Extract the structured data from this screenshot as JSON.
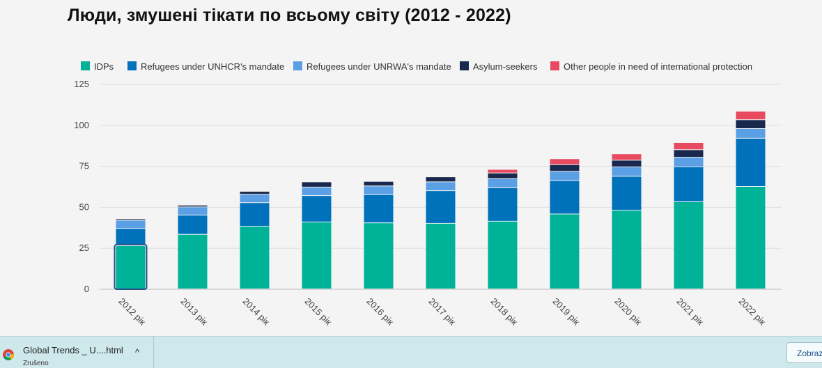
{
  "chart_data": {
    "type": "bar",
    "stacked": true,
    "title": "Люди, змушені тікати по всьому світу (2012 - 2022)",
    "xlabel": "",
    "ylabel": "",
    "ylim": [
      0,
      125
    ],
    "yticks": [
      0,
      25,
      50,
      75,
      100,
      125
    ],
    "grid": true,
    "legend_position": "top",
    "categories": [
      "2012 рік",
      "2013 рік",
      "2014 рік",
      "2015 рік",
      "2016 рік",
      "2017 рік",
      "2018 рік",
      "2019 рік",
      "2020 рік",
      "2021 рік",
      "2022 рік"
    ],
    "series": [
      {
        "name": "IDPs",
        "color": "#00b398",
        "values": [
          26.4,
          33.3,
          38.2,
          40.8,
          40.3,
          40.0,
          41.3,
          45.7,
          48.0,
          53.2,
          62.5
        ]
      },
      {
        "name": "Refugees under UNHCR's mandate",
        "color": "#0072bc",
        "values": [
          10.5,
          11.7,
          14.4,
          16.1,
          17.2,
          19.9,
          20.4,
          20.4,
          20.7,
          21.3,
          29.4
        ]
      },
      {
        "name": "Refugees under UNRWA's mandate",
        "color": "#5b9fe5",
        "values": [
          5.0,
          5.0,
          5.1,
          5.2,
          5.3,
          5.4,
          5.5,
          5.6,
          5.7,
          5.8,
          5.9
        ]
      },
      {
        "name": "Asylum-seekers",
        "color": "#18294d",
        "values": [
          0.9,
          1.1,
          1.8,
          3.2,
          2.8,
          3.1,
          3.5,
          4.1,
          4.1,
          4.6,
          5.4
        ]
      },
      {
        "name": "Other people in need of international protection",
        "color": "#e84a5f",
        "values": [
          0,
          0,
          0,
          0,
          0,
          0,
          2.2,
          3.6,
          3.9,
          4.4,
          5.2
        ]
      }
    ]
  },
  "download_bar": {
    "filename": "Global Trends _ U....html",
    "status": "Zrušeno",
    "show_all": "Zobraz",
    "chevron": "^"
  },
  "icons": {
    "browser": "chrome-icon",
    "expand": "chevron-up-icon"
  }
}
